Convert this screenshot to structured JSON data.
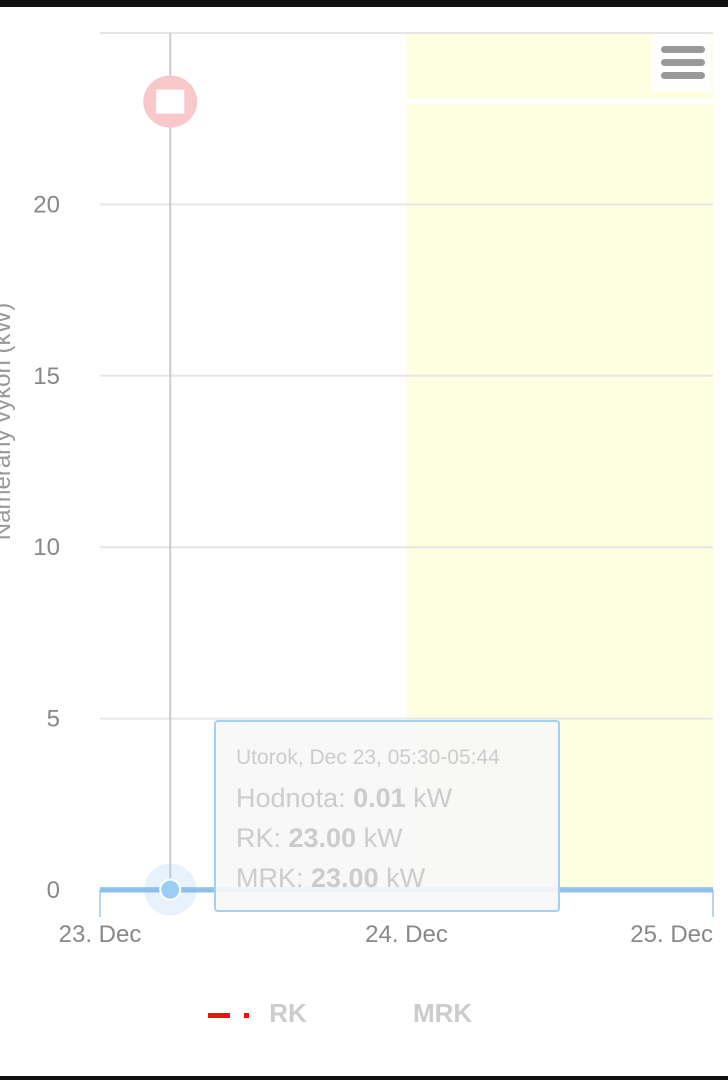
{
  "chart_data": {
    "type": "line",
    "ylabel": "Nameraný výkon (kW)",
    "ylim": [
      0,
      25
    ],
    "yticks": [
      "0",
      "5",
      "10",
      "15",
      "20"
    ],
    "xticks": [
      "23. Dec",
      "24. Dec",
      "25. Dec"
    ],
    "xlim": [
      "2014-12-23 00:00",
      "2014-12-25 00:00"
    ],
    "grid": true,
    "plot_band": {
      "from": "24. Dec",
      "to": "25. Dec",
      "color": "#fefee0"
    },
    "series": [
      {
        "name": "Hodnota",
        "color": "#7cb5ec",
        "values_kw": 0.01
      },
      {
        "name": "RK",
        "color": "#ee1111",
        "dash": "dash-dot",
        "values_kw": 23.0
      },
      {
        "name": "MRK",
        "values_kw": 23.0
      }
    ],
    "hover_point": {
      "x": "Dec 23, 05:30",
      "y": 0.01
    },
    "legend": {
      "placement": "bottom",
      "items": [
        "RK",
        "MRK"
      ]
    }
  },
  "tooltip": {
    "header": "Utorok, Dec 23, 05:30-05:44",
    "rows": [
      {
        "label": "Hodnota: ",
        "value": "0.01",
        "unit": " kW"
      },
      {
        "label": "RK: ",
        "value": "23.00",
        "unit": " kW"
      },
      {
        "label": "MRK: ",
        "value": "23.00",
        "unit": " kW"
      }
    ]
  },
  "menu_icon": "hamburger-icon"
}
